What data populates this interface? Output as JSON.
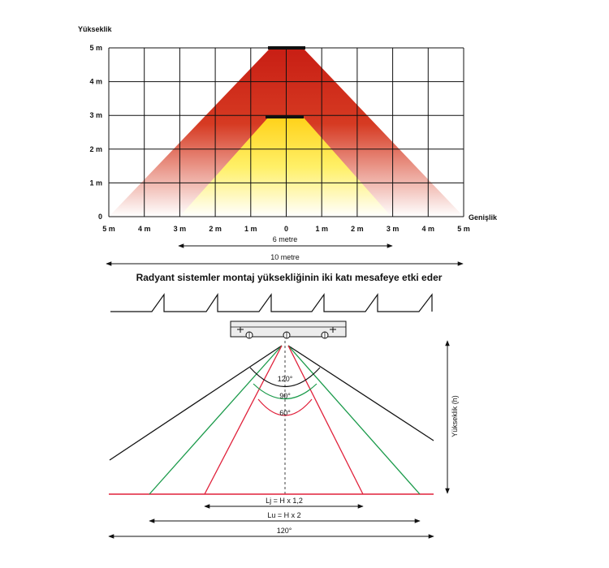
{
  "chart": {
    "y_axis_title": "Yükseklik",
    "x_axis_title": "Genişlik",
    "y_ticks": [
      "0",
      "1 m",
      "2 m",
      "3 m",
      "4 m",
      "5 m"
    ],
    "x_ticks": [
      "5 m",
      "4 m",
      "3 m",
      "2 m",
      "1 m",
      "0",
      "1 m",
      "2 m",
      "3 m",
      "4 m",
      "5 m"
    ],
    "dimension_6m": "6 metre",
    "dimension_10m": "10 metre",
    "heater_heights_m": [
      3,
      5
    ],
    "colors": {
      "outer_cone": "#d42a1c",
      "inner_cone": "#ffe11a",
      "fade": "#ffffff"
    }
  },
  "caption": "Radyant sistemler montaj yüksekliğinin iki katı mesafeye etki eder",
  "beam": {
    "height_label": "Yükseklik (h)",
    "angles": [
      "120°",
      "90°",
      "60°"
    ],
    "dim_lj": "Lj = H x 1,2",
    "dim_lu": "Lu = H x 2",
    "dim_120": "120°",
    "colors": {
      "angle_120": "#111111",
      "angle_90": "#1a9a4a",
      "angle_60": "#e0203a"
    }
  }
}
